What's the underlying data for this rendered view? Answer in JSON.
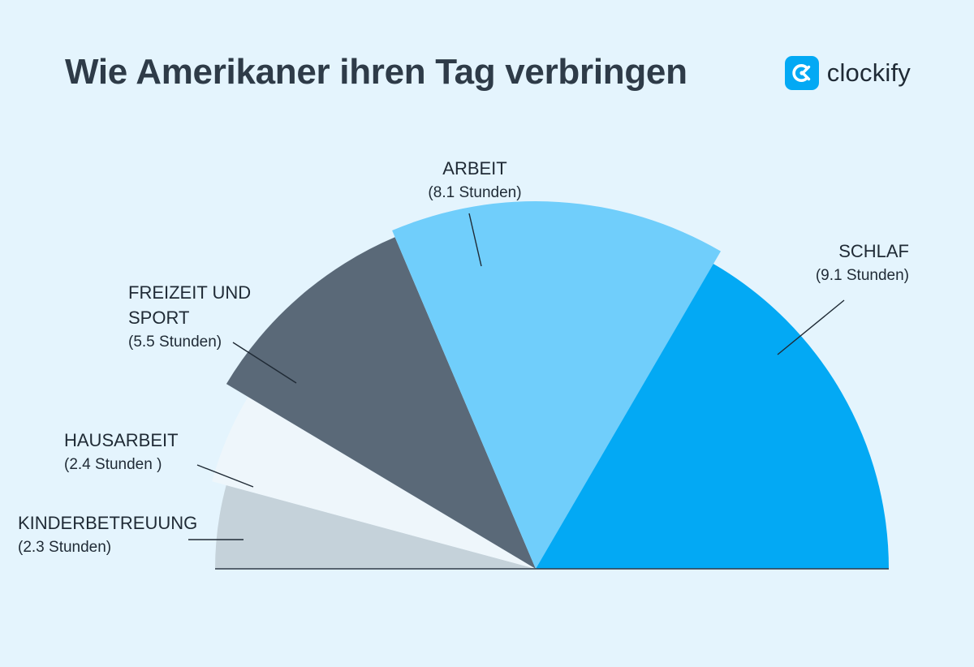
{
  "header": {
    "title": "Wie Amerikaner ihren Tag verbringen",
    "brand_name": "clockify",
    "brand_icon": "clockify-logo-icon"
  },
  "chart_data": {
    "type": "pie",
    "variant": "semicircle",
    "title": "Wie Amerikaner ihren Tag verbringen",
    "unit": "Stunden",
    "slices": [
      {
        "label": "KINDERBETREUUNG",
        "label_lines": [
          "KINDERBETREUUNG"
        ],
        "value": 2.3,
        "value_text": "(2.3 Stunden)",
        "color": "#c5d2da"
      },
      {
        "label": "HAUSARBEIT",
        "label_lines": [
          "HAUSARBEIT"
        ],
        "value": 2.4,
        "value_text": "(2.4 Stunden )",
        "color": "#eef6fb"
      },
      {
        "label": "FREIZEIT UND SPORT",
        "label_lines": [
          "FREIZEIT UND",
          "SPORT"
        ],
        "value": 5.5,
        "value_text": "(5.5 Stunden)",
        "color": "#5a6978"
      },
      {
        "label": "ARBEIT",
        "label_lines": [
          "ARBEIT"
        ],
        "value": 8.1,
        "value_text": "(8.1 Stunden)",
        "color": "#70cefb"
      },
      {
        "label": "SCHLAF",
        "label_lines": [
          "SCHLAF"
        ],
        "value": 9.1,
        "value_text": "(9.1 Stunden)",
        "color": "#03a9f4"
      }
    ]
  }
}
